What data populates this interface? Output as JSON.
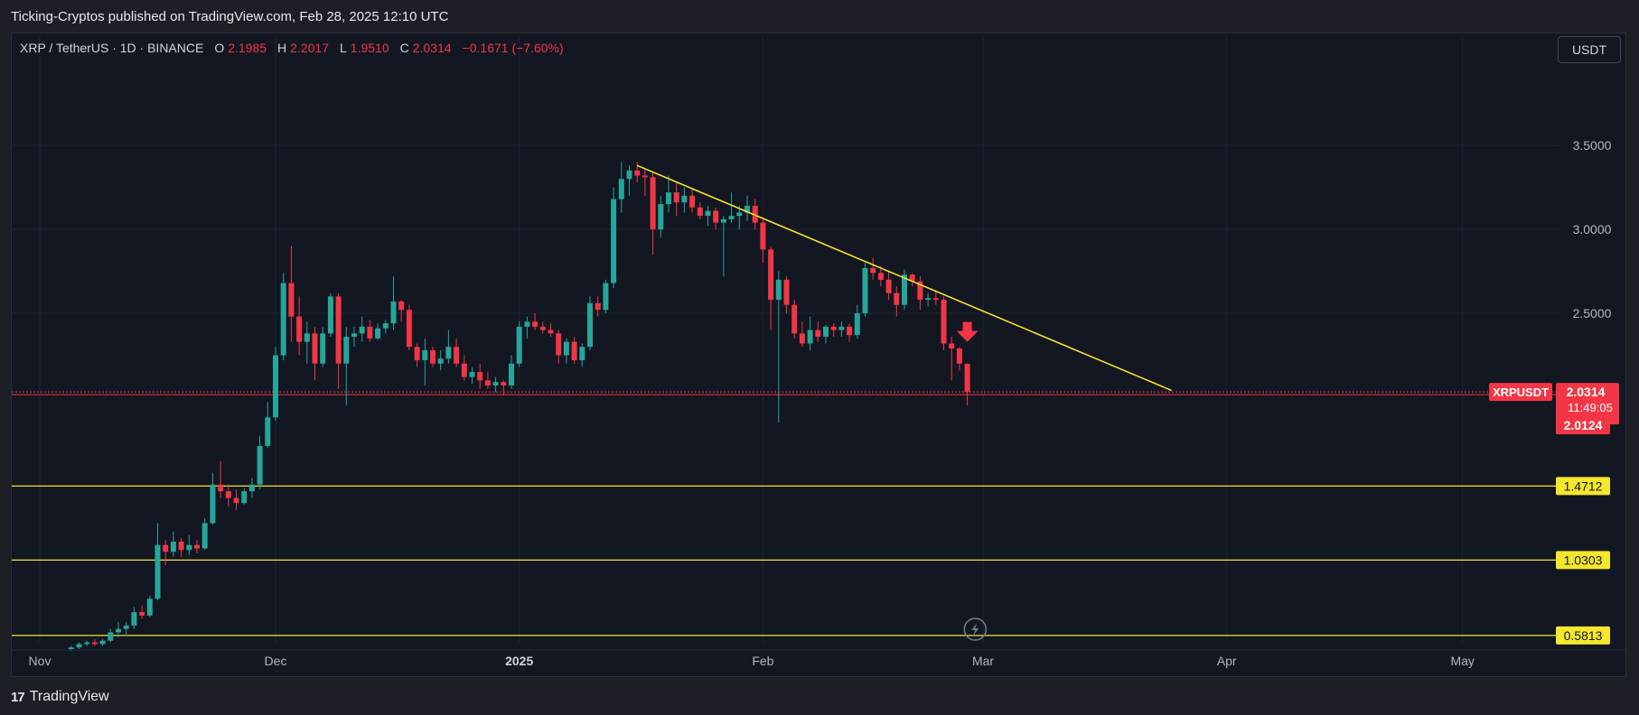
{
  "header": {
    "title": "Ticking-Cryptos published on TradingView.com, Feb 28, 2025 12:10 UTC"
  },
  "legend": {
    "symbol": "XRP / TetherUS · 1D · BINANCE",
    "o_label": "O",
    "o_value": "2.1985",
    "h_label": "H",
    "h_value": "2.2017",
    "l_label": "L",
    "l_value": "1.9510",
    "c_label": "C",
    "c_value": "2.0314",
    "change": "−0.1671 (−7.60%)"
  },
  "currency_button": "USDT",
  "footer": {
    "brand": "TradingView",
    "logo": "17"
  },
  "colors": {
    "up": "#26a69a",
    "down": "#f23645",
    "trendline": "#f5e62e",
    "background": "#131722"
  },
  "chart_data": {
    "type": "candlestick",
    "symbol": "XRPUSDT",
    "y_ticks": [
      {
        "value": 3.5,
        "label": "3.5000"
      },
      {
        "value": 3.0,
        "label": "3.0000"
      },
      {
        "value": 2.5,
        "label": "2.5000"
      }
    ],
    "x_ticks": [
      {
        "date": "2024-11-01",
        "label": "Nov",
        "bold": false
      },
      {
        "date": "2024-12-01",
        "label": "Dec",
        "bold": false
      },
      {
        "date": "2025-01-01",
        "label": "2025",
        "bold": true
      },
      {
        "date": "2025-02-01",
        "label": "Feb",
        "bold": false
      },
      {
        "date": "2025-03-01",
        "label": "Mar",
        "bold": false
      },
      {
        "date": "2025-04-01",
        "label": "Apr",
        "bold": false
      },
      {
        "date": "2025-05-01",
        "label": "May",
        "bold": false
      }
    ],
    "price_label": {
      "symbol": "XRPUSDT",
      "price": "2.0314",
      "countdown": "11:49:05",
      "low": "2.0124"
    },
    "current_price": 2.0314,
    "support_levels": [
      {
        "value": 1.4712,
        "label": "1.4712"
      },
      {
        "value": 1.0303,
        "label": "1.0303"
      },
      {
        "value": 0.5813,
        "label": "0.5813"
      }
    ],
    "trendline": {
      "start": {
        "date": "2025-01-16",
        "price": 3.38
      },
      "end": {
        "date": "2025-03-25",
        "price": 2.04
      }
    },
    "sell_arrow": {
      "date": "2025-02-27",
      "price": 2.33
    },
    "candles": [
      [
        "2024-11-05",
        0.5,
        0.52,
        0.49,
        0.51
      ],
      [
        "2024-11-06",
        0.51,
        0.54,
        0.5,
        0.53
      ],
      [
        "2024-11-07",
        0.53,
        0.55,
        0.52,
        0.54
      ],
      [
        "2024-11-08",
        0.54,
        0.56,
        0.52,
        0.53
      ],
      [
        "2024-11-09",
        0.53,
        0.56,
        0.52,
        0.55
      ],
      [
        "2024-11-10",
        0.55,
        0.62,
        0.54,
        0.6
      ],
      [
        "2024-11-11",
        0.6,
        0.66,
        0.57,
        0.62
      ],
      [
        "2024-11-12",
        0.62,
        0.66,
        0.58,
        0.64
      ],
      [
        "2024-11-13",
        0.64,
        0.75,
        0.62,
        0.72
      ],
      [
        "2024-11-14",
        0.72,
        0.76,
        0.68,
        0.7
      ],
      [
        "2024-11-15",
        0.7,
        0.82,
        0.69,
        0.8
      ],
      [
        "2024-11-16",
        0.8,
        1.25,
        0.79,
        1.12
      ],
      [
        "2024-11-17",
        1.12,
        1.15,
        1.0,
        1.08
      ],
      [
        "2024-11-18",
        1.08,
        1.2,
        1.05,
        1.14
      ],
      [
        "2024-11-19",
        1.14,
        1.16,
        1.05,
        1.09
      ],
      [
        "2024-11-20",
        1.09,
        1.18,
        1.06,
        1.12
      ],
      [
        "2024-11-21",
        1.12,
        1.15,
        1.07,
        1.1
      ],
      [
        "2024-11-22",
        1.1,
        1.28,
        1.09,
        1.25
      ],
      [
        "2024-11-23",
        1.25,
        1.55,
        1.24,
        1.48
      ],
      [
        "2024-11-24",
        1.48,
        1.62,
        1.4,
        1.44
      ],
      [
        "2024-11-25",
        1.44,
        1.48,
        1.35,
        1.4
      ],
      [
        "2024-11-26",
        1.4,
        1.45,
        1.33,
        1.37
      ],
      [
        "2024-11-27",
        1.37,
        1.46,
        1.36,
        1.44
      ],
      [
        "2024-11-28",
        1.44,
        1.52,
        1.4,
        1.48
      ],
      [
        "2024-11-29",
        1.48,
        1.77,
        1.45,
        1.71
      ],
      [
        "2024-11-30",
        1.71,
        1.97,
        1.7,
        1.88
      ],
      [
        "2024-12-01",
        1.88,
        2.3,
        1.86,
        2.25
      ],
      [
        "2024-12-02",
        2.25,
        2.74,
        2.22,
        2.68
      ],
      [
        "2024-12-03",
        2.68,
        2.9,
        2.33,
        2.48
      ],
      [
        "2024-12-04",
        2.48,
        2.6,
        2.25,
        2.33
      ],
      [
        "2024-12-05",
        2.33,
        2.45,
        2.2,
        2.38
      ],
      [
        "2024-12-06",
        2.38,
        2.42,
        2.1,
        2.2
      ],
      [
        "2024-12-07",
        2.2,
        2.42,
        2.18,
        2.38
      ],
      [
        "2024-12-08",
        2.38,
        2.62,
        2.36,
        2.6
      ],
      [
        "2024-12-09",
        2.6,
        2.62,
        2.05,
        2.2
      ],
      [
        "2024-12-10",
        2.2,
        2.42,
        1.95,
        2.36
      ],
      [
        "2024-12-11",
        2.36,
        2.42,
        2.3,
        2.38
      ],
      [
        "2024-12-12",
        2.38,
        2.48,
        2.33,
        2.42
      ],
      [
        "2024-12-13",
        2.42,
        2.46,
        2.33,
        2.35
      ],
      [
        "2024-12-14",
        2.35,
        2.44,
        2.34,
        2.41
      ],
      [
        "2024-12-15",
        2.41,
        2.46,
        2.38,
        2.44
      ],
      [
        "2024-12-16",
        2.44,
        2.72,
        2.4,
        2.57
      ],
      [
        "2024-12-17",
        2.57,
        2.58,
        2.45,
        2.52
      ],
      [
        "2024-12-18",
        2.52,
        2.55,
        2.28,
        2.3
      ],
      [
        "2024-12-19",
        2.3,
        2.32,
        2.18,
        2.22
      ],
      [
        "2024-12-20",
        2.22,
        2.35,
        2.07,
        2.28
      ],
      [
        "2024-12-21",
        2.28,
        2.3,
        2.18,
        2.2
      ],
      [
        "2024-12-22",
        2.2,
        2.28,
        2.16,
        2.23
      ],
      [
        "2024-12-23",
        2.23,
        2.4,
        2.2,
        2.3
      ],
      [
        "2024-12-24",
        2.3,
        2.35,
        2.18,
        2.2
      ],
      [
        "2024-12-25",
        2.2,
        2.25,
        2.1,
        2.12
      ],
      [
        "2024-12-26",
        2.12,
        2.18,
        2.08,
        2.15
      ],
      [
        "2024-12-27",
        2.15,
        2.2,
        2.05,
        2.1
      ],
      [
        "2024-12-28",
        2.1,
        2.15,
        2.05,
        2.07
      ],
      [
        "2024-12-29",
        2.07,
        2.12,
        2.03,
        2.09
      ],
      [
        "2024-12-30",
        2.09,
        2.1,
        2.01,
        2.07
      ],
      [
        "2024-12-31",
        2.07,
        2.25,
        2.05,
        2.2
      ],
      [
        "2025-01-01",
        2.2,
        2.45,
        2.18,
        2.42
      ],
      [
        "2025-01-02",
        2.42,
        2.48,
        2.35,
        2.45
      ],
      [
        "2025-01-03",
        2.45,
        2.5,
        2.4,
        2.42
      ],
      [
        "2025-01-04",
        2.42,
        2.45,
        2.38,
        2.4
      ],
      [
        "2025-01-05",
        2.4,
        2.44,
        2.36,
        2.38
      ],
      [
        "2025-01-06",
        2.38,
        2.4,
        2.2,
        2.25
      ],
      [
        "2025-01-07",
        2.25,
        2.35,
        2.2,
        2.33
      ],
      [
        "2025-01-08",
        2.33,
        2.36,
        2.2,
        2.22
      ],
      [
        "2025-01-09",
        2.22,
        2.32,
        2.18,
        2.3
      ],
      [
        "2025-01-10",
        2.3,
        2.6,
        2.28,
        2.56
      ],
      [
        "2025-01-11",
        2.56,
        2.6,
        2.48,
        2.52
      ],
      [
        "2025-01-12",
        2.52,
        2.7,
        2.5,
        2.68
      ],
      [
        "2025-01-13",
        2.68,
        3.25,
        2.65,
        3.18
      ],
      [
        "2025-01-14",
        3.18,
        3.4,
        3.1,
        3.3
      ],
      [
        "2025-01-15",
        3.3,
        3.38,
        3.2,
        3.35
      ],
      [
        "2025-01-16",
        3.35,
        3.4,
        3.28,
        3.32
      ],
      [
        "2025-01-17",
        3.32,
        3.36,
        3.2,
        3.31
      ],
      [
        "2025-01-18",
        3.31,
        3.34,
        2.85,
        3.0
      ],
      [
        "2025-01-19",
        3.0,
        3.2,
        2.95,
        3.15
      ],
      [
        "2025-01-20",
        3.15,
        3.32,
        3.1,
        3.22
      ],
      [
        "2025-01-21",
        3.22,
        3.28,
        3.08,
        3.16
      ],
      [
        "2025-01-22",
        3.16,
        3.25,
        3.1,
        3.2
      ],
      [
        "2025-01-23",
        3.2,
        3.24,
        3.1,
        3.13
      ],
      [
        "2025-01-24",
        3.13,
        3.16,
        3.06,
        3.08
      ],
      [
        "2025-01-25",
        3.08,
        3.14,
        3.02,
        3.11
      ],
      [
        "2025-01-26",
        3.11,
        3.13,
        3.0,
        3.04
      ],
      [
        "2025-01-27",
        3.04,
        3.08,
        2.72,
        3.06
      ],
      [
        "2025-01-28",
        3.06,
        3.22,
        3.04,
        3.08
      ],
      [
        "2025-01-29",
        3.08,
        3.14,
        3.0,
        3.1
      ],
      [
        "2025-01-30",
        3.1,
        3.2,
        3.05,
        3.14
      ],
      [
        "2025-01-31",
        3.14,
        3.18,
        3.0,
        3.04
      ],
      [
        "2025-02-01",
        3.04,
        3.06,
        2.8,
        2.88
      ],
      [
        "2025-02-02",
        2.88,
        2.9,
        2.4,
        2.58
      ],
      [
        "2025-02-03",
        2.58,
        2.75,
        1.85,
        2.7
      ],
      [
        "2025-02-04",
        2.7,
        2.72,
        2.5,
        2.55
      ],
      [
        "2025-02-05",
        2.55,
        2.58,
        2.35,
        2.38
      ],
      [
        "2025-02-06",
        2.38,
        2.45,
        2.3,
        2.32
      ],
      [
        "2025-02-07",
        2.32,
        2.48,
        2.28,
        2.4
      ],
      [
        "2025-02-08",
        2.4,
        2.45,
        2.33,
        2.36
      ],
      [
        "2025-02-09",
        2.36,
        2.43,
        2.32,
        2.42
      ],
      [
        "2025-02-10",
        2.42,
        2.44,
        2.36,
        2.4
      ],
      [
        "2025-02-11",
        2.4,
        2.45,
        2.36,
        2.42
      ],
      [
        "2025-02-12",
        2.42,
        2.44,
        2.33,
        2.37
      ],
      [
        "2025-02-13",
        2.37,
        2.55,
        2.35,
        2.5
      ],
      [
        "2025-02-14",
        2.5,
        2.8,
        2.48,
        2.77
      ],
      [
        "2025-02-15",
        2.77,
        2.83,
        2.7,
        2.74
      ],
      [
        "2025-02-16",
        2.74,
        2.78,
        2.66,
        2.7
      ],
      [
        "2025-02-17",
        2.7,
        2.75,
        2.58,
        2.62
      ],
      [
        "2025-02-18",
        2.62,
        2.66,
        2.48,
        2.55
      ],
      [
        "2025-02-19",
        2.55,
        2.76,
        2.52,
        2.73
      ],
      [
        "2025-02-20",
        2.73,
        2.74,
        2.66,
        2.69
      ],
      [
        "2025-02-21",
        2.69,
        2.72,
        2.52,
        2.58
      ],
      [
        "2025-02-22",
        2.58,
        2.62,
        2.54,
        2.59
      ],
      [
        "2025-02-23",
        2.59,
        2.63,
        2.55,
        2.58
      ],
      [
        "2025-02-24",
        2.58,
        2.6,
        2.28,
        2.32
      ],
      [
        "2025-02-25",
        2.32,
        2.36,
        2.1,
        2.29
      ],
      [
        "2025-02-26",
        2.29,
        2.3,
        2.16,
        2.2
      ],
      [
        "2025-02-27",
        2.1985,
        2.2017,
        1.951,
        2.0314
      ]
    ]
  }
}
